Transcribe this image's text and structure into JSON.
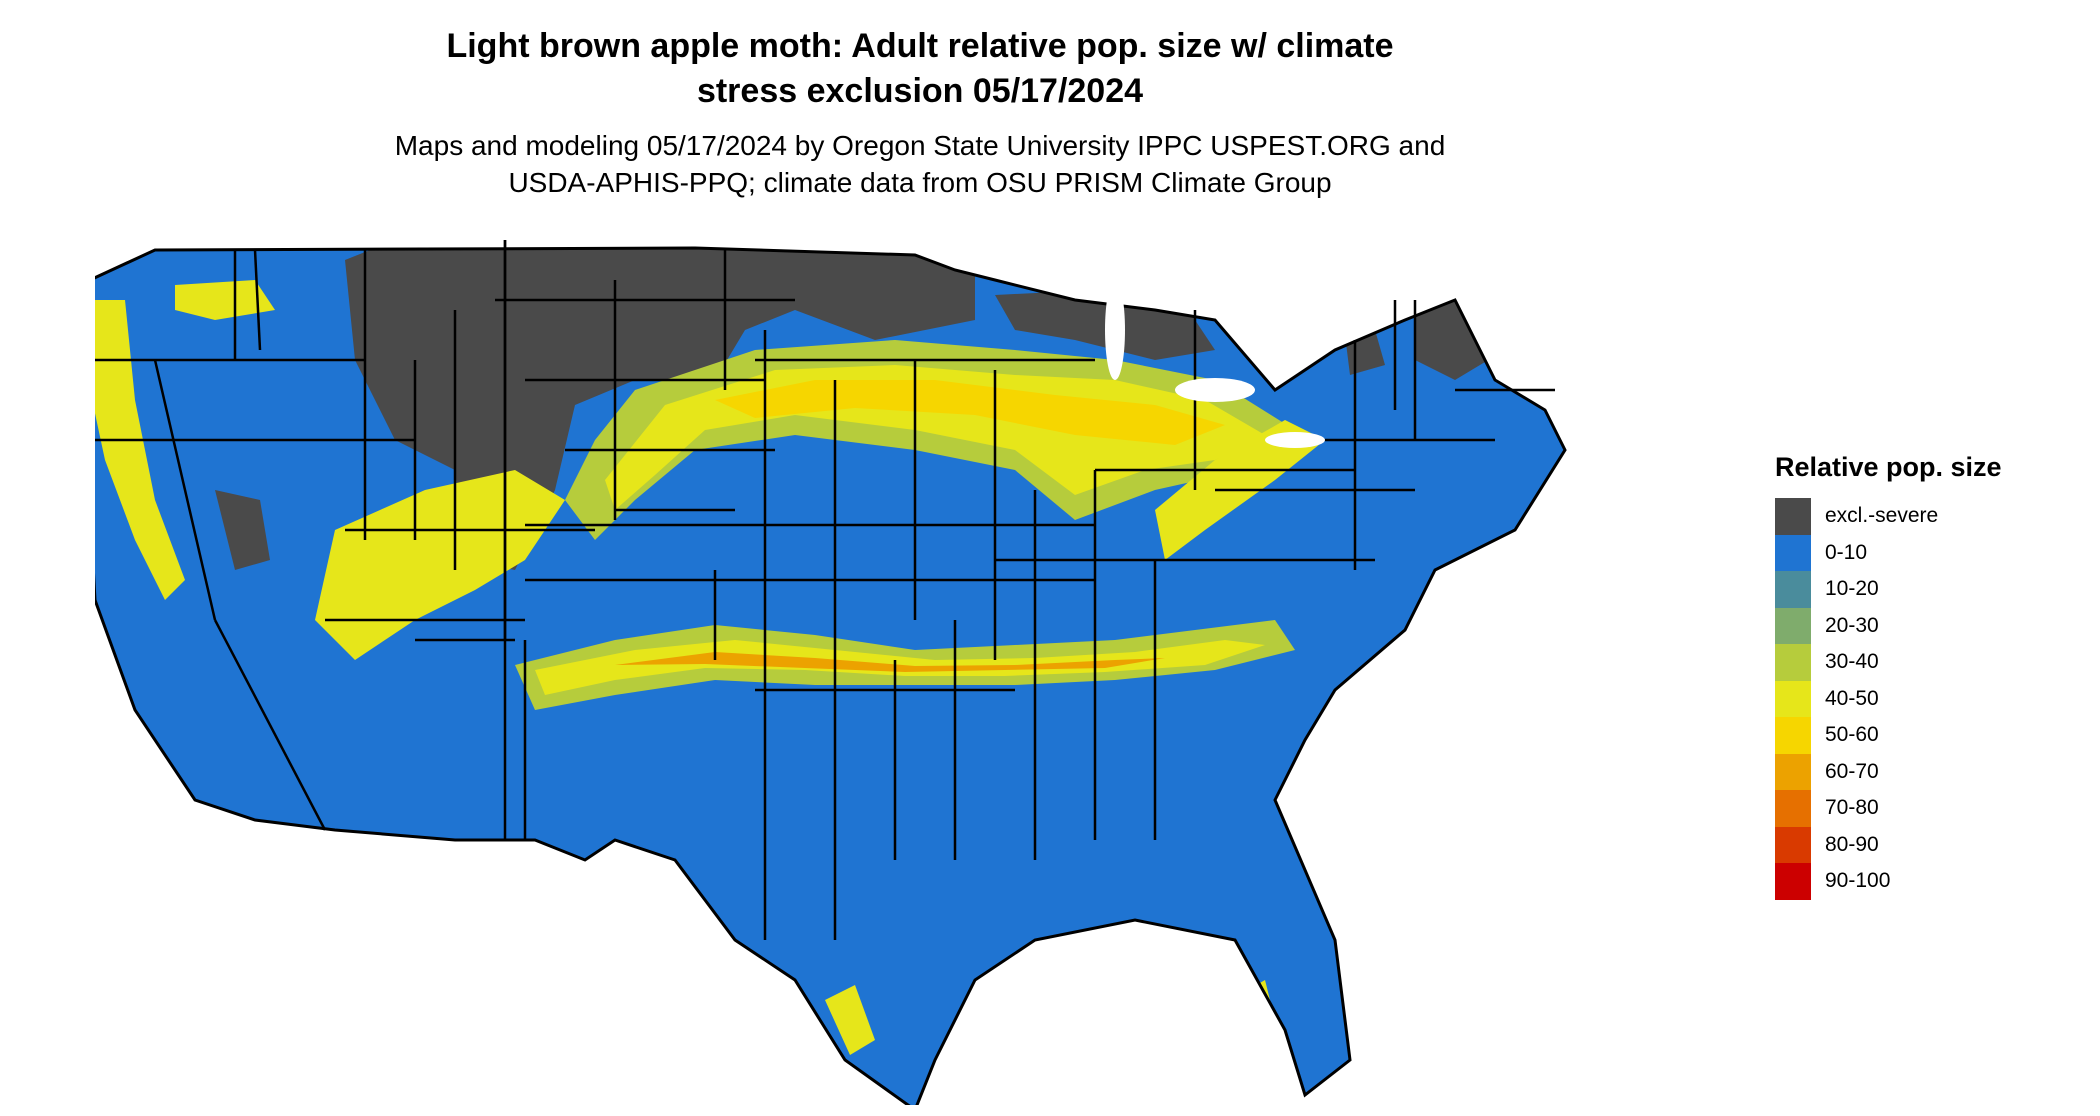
{
  "header": {
    "title_line1": "Light brown apple moth: Adult relative pop. size w/ climate",
    "title_line2": "stress exclusion 05/17/2024",
    "subtitle_line1": "Maps and modeling 05/17/2024 by Oregon State University IPPC USPEST.ORG and",
    "subtitle_line2": "USDA-APHIS-PPQ; climate data from OSU PRISM Climate Group"
  },
  "legend": {
    "title": "Relative pop. size",
    "items": [
      {
        "label": "excl.-severe",
        "color": "#4a4a4a"
      },
      {
        "label": "0-10",
        "color": "#1f74d2"
      },
      {
        "label": "10-20",
        "color": "#4a8c9c"
      },
      {
        "label": "20-30",
        "color": "#7fac6c"
      },
      {
        "label": "30-40",
        "color": "#b6cc3c"
      },
      {
        "label": "40-50",
        "color": "#e6e61a"
      },
      {
        "label": "50-60",
        "color": "#f6d600"
      },
      {
        "label": "60-70",
        "color": "#eca200"
      },
      {
        "label": "70-80",
        "color": "#e67000"
      },
      {
        "label": "80-90",
        "color": "#d93a00"
      },
      {
        "label": "90-100",
        "color": "#cc0000"
      }
    ]
  }
}
